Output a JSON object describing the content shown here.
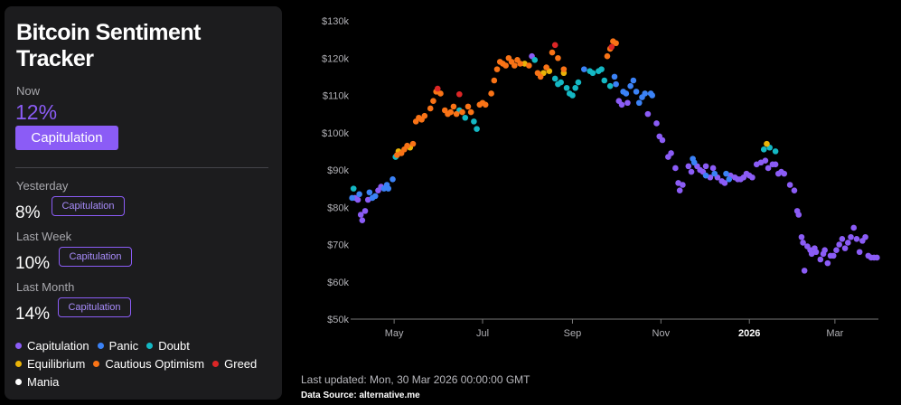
{
  "tracker": {
    "title_line1": "Bitcoin Sentiment",
    "title_line2": "Tracker",
    "now_label": "Now",
    "now_value": "12%",
    "now_state": "Capitulation",
    "history": [
      {
        "label": "Yesterday",
        "value": "8%",
        "state": "Capitulation"
      },
      {
        "label": "Last Week",
        "value": "10%",
        "state": "Capitulation"
      },
      {
        "label": "Last Month",
        "value": "14%",
        "state": "Capitulation"
      }
    ]
  },
  "legend": [
    {
      "label": "Capitulation",
      "color": "#8b5cf6"
    },
    {
      "label": "Panic",
      "color": "#3b82f6"
    },
    {
      "label": "Doubt",
      "color": "#14b8c4"
    },
    {
      "label": "Equilibrium",
      "color": "#eab308"
    },
    {
      "label": "Cautious Optimism",
      "color": "#f97316"
    },
    {
      "label": "Greed",
      "color": "#dc2626"
    },
    {
      "label": "Mania",
      "color": "#ffffff"
    }
  ],
  "footer": {
    "updated": "Last updated: Mon, 30 Mar 2026 00:00:00 GMT",
    "source": "Data Source: alternative.me"
  },
  "chart_data": {
    "type": "scatter",
    "title": "",
    "xlabel": "",
    "ylabel": "",
    "x_ticks": [
      {
        "label": "May",
        "day": 15,
        "bold": false
      },
      {
        "label": "Jul",
        "day": 76,
        "bold": false
      },
      {
        "label": "Sep",
        "day": 138,
        "bold": false
      },
      {
        "label": "Nov",
        "day": 199,
        "bold": false
      },
      {
        "label": "2026",
        "day": 260,
        "bold": true
      },
      {
        "label": "Mar",
        "day": 319,
        "bold": false
      }
    ],
    "x_range": [
      -15,
      349
    ],
    "y_ticks": [
      "$50k",
      "$60k",
      "$70k",
      "$80k",
      "$90k",
      "$100k",
      "$110k",
      "$120k",
      "$130k"
    ],
    "ylim": [
      50000,
      130000
    ],
    "grid": false,
    "state_colors": {
      "Capitulation": "#8b5cf6",
      "Panic": "#3b82f6",
      "Doubt": "#14b8c4",
      "Equilibrium": "#eab308",
      "Cautious Optimism": "#f97316",
      "Greed": "#dc2626",
      "Mania": "#ffffff"
    },
    "series": [
      {
        "name": "Capitulation",
        "points": [
          [
            -12,
            82500
          ],
          [
            -10,
            82000
          ],
          [
            -8,
            78000
          ],
          [
            -7,
            76500
          ],
          [
            -5,
            79000
          ],
          [
            -3,
            82000
          ],
          [
            4,
            84500
          ],
          [
            6,
            85500
          ],
          [
            110,
            120500
          ],
          [
            170,
            108500
          ],
          [
            172,
            107500
          ],
          [
            176,
            108000
          ],
          [
            190,
            105000
          ],
          [
            196,
            102500
          ],
          [
            198,
            99000
          ],
          [
            200,
            98000
          ],
          [
            204,
            93500
          ],
          [
            206,
            94500
          ],
          [
            209,
            90500
          ],
          [
            211,
            86500
          ],
          [
            212,
            84500
          ],
          [
            214,
            86000
          ],
          [
            218,
            91000
          ],
          [
            220,
            89500
          ],
          [
            224,
            91000
          ],
          [
            226,
            90000
          ],
          [
            228,
            89500
          ],
          [
            230,
            91000
          ],
          [
            233,
            88000
          ],
          [
            235,
            90500
          ],
          [
            238,
            88000
          ],
          [
            241,
            87000
          ],
          [
            243,
            86500
          ],
          [
            247,
            88500
          ],
          [
            250,
            88000
          ],
          [
            252,
            87500
          ],
          [
            254,
            87500
          ],
          [
            256,
            88000
          ],
          [
            258,
            89000
          ],
          [
            260,
            88500
          ],
          [
            262,
            88000
          ],
          [
            265,
            91500
          ],
          [
            268,
            92000
          ],
          [
            271,
            92500
          ],
          [
            273,
            90500
          ],
          [
            276,
            91500
          ],
          [
            278,
            91500
          ],
          [
            280,
            89000
          ],
          [
            282,
            89500
          ],
          [
            284,
            89000
          ],
          [
            288,
            86000
          ],
          [
            291,
            84500
          ],
          [
            293,
            79000
          ],
          [
            294,
            78000
          ],
          [
            296,
            72000
          ],
          [
            297,
            70500
          ],
          [
            298,
            63000
          ],
          [
            300,
            69500
          ],
          [
            302,
            68500
          ],
          [
            303,
            67500
          ],
          [
            305,
            69000
          ],
          [
            306,
            68000
          ],
          [
            309,
            66000
          ],
          [
            311,
            67500
          ],
          [
            312,
            68500
          ],
          [
            314,
            65000
          ],
          [
            316,
            67000
          ],
          [
            318,
            67000
          ],
          [
            320,
            68500
          ],
          [
            322,
            70000
          ],
          [
            324,
            71500
          ],
          [
            326,
            69000
          ],
          [
            328,
            70500
          ],
          [
            330,
            72000
          ],
          [
            332,
            74500
          ],
          [
            334,
            71500
          ],
          [
            336,
            68000
          ],
          [
            338,
            71000
          ],
          [
            340,
            72000
          ],
          [
            342,
            67000
          ],
          [
            344,
            66500
          ],
          [
            346,
            66500
          ],
          [
            348,
            66500
          ]
        ]
      },
      {
        "name": "Panic",
        "points": [
          [
            -14,
            82500
          ],
          [
            -9,
            83500
          ],
          [
            -2,
            84000
          ],
          [
            0,
            82500
          ],
          [
            2,
            83000
          ],
          [
            8,
            85000
          ],
          [
            10,
            86000
          ],
          [
            11,
            85000
          ],
          [
            14,
            87500
          ],
          [
            146,
            117000
          ],
          [
            167,
            115000
          ],
          [
            168,
            113000
          ],
          [
            173,
            111000
          ],
          [
            175,
            110500
          ],
          [
            178,
            112500
          ],
          [
            180,
            114000
          ],
          [
            182,
            111000
          ],
          [
            184,
            108000
          ],
          [
            186,
            109500
          ],
          [
            188,
            110500
          ],
          [
            192,
            110500
          ],
          [
            193,
            110000
          ],
          [
            221,
            93000
          ],
          [
            222,
            92000
          ],
          [
            230,
            88500
          ],
          [
            236,
            89000
          ],
          [
            244,
            89000
          ],
          [
            246,
            87500
          ]
        ]
      },
      {
        "name": "Doubt",
        "points": [
          [
            -13,
            85000
          ],
          [
            16,
            93500
          ],
          [
            60,
            106000
          ],
          [
            64,
            104000
          ],
          [
            70,
            103000
          ],
          [
            72,
            101000
          ],
          [
            112,
            119500
          ],
          [
            126,
            114500
          ],
          [
            128,
            113000
          ],
          [
            130,
            113500
          ],
          [
            134,
            112000
          ],
          [
            136,
            110500
          ],
          [
            138,
            110000
          ],
          [
            140,
            112000
          ],
          [
            142,
            113500
          ],
          [
            150,
            116500
          ],
          [
            152,
            116000
          ],
          [
            156,
            116500
          ],
          [
            158,
            117000
          ],
          [
            160,
            114000
          ],
          [
            164,
            112500
          ],
          [
            270,
            95500
          ],
          [
            274,
            96000
          ],
          [
            278,
            95000
          ]
        ]
      },
      {
        "name": "Equilibrium",
        "points": [
          [
            18,
            95000
          ],
          [
            26,
            96000
          ],
          [
            105,
            118500
          ],
          [
            118,
            116000
          ],
          [
            122,
            116500
          ],
          [
            132,
            116000
          ],
          [
            272,
            97000
          ]
        ]
      },
      {
        "name": "Cautious Optimism",
        "points": [
          [
            17,
            94000
          ],
          [
            20,
            94500
          ],
          [
            22,
            95500
          ],
          [
            24,
            96500
          ],
          [
            28,
            97000
          ],
          [
            30,
            103000
          ],
          [
            32,
            104000
          ],
          [
            34,
            103500
          ],
          [
            36,
            104500
          ],
          [
            40,
            106500
          ],
          [
            42,
            108500
          ],
          [
            44,
            111000
          ],
          [
            47,
            110500
          ],
          [
            50,
            106000
          ],
          [
            52,
            105000
          ],
          [
            54,
            105500
          ],
          [
            56,
            107000
          ],
          [
            58,
            105000
          ],
          [
            62,
            105500
          ],
          [
            66,
            107000
          ],
          [
            68,
            105500
          ],
          [
            74,
            107500
          ],
          [
            76,
            108000
          ],
          [
            78,
            107500
          ],
          [
            82,
            110500
          ],
          [
            84,
            114000
          ],
          [
            86,
            117000
          ],
          [
            88,
            119000
          ],
          [
            90,
            118500
          ],
          [
            92,
            118000
          ],
          [
            94,
            120000
          ],
          [
            96,
            119000
          ],
          [
            98,
            118000
          ],
          [
            100,
            119500
          ],
          [
            102,
            118500
          ],
          [
            108,
            118000
          ],
          [
            114,
            116000
          ],
          [
            116,
            115000
          ],
          [
            120,
            117500
          ],
          [
            124,
            121500
          ],
          [
            128,
            120000
          ],
          [
            132,
            117000
          ],
          [
            162,
            120500
          ],
          [
            164,
            122500
          ],
          [
            166,
            124500
          ],
          [
            168,
            124000
          ]
        ]
      },
      {
        "name": "Greed",
        "points": [
          [
            45,
            111800
          ],
          [
            60,
            110300
          ],
          [
            126,
            123500
          ],
          [
            165,
            123000
          ]
        ]
      }
    ]
  }
}
